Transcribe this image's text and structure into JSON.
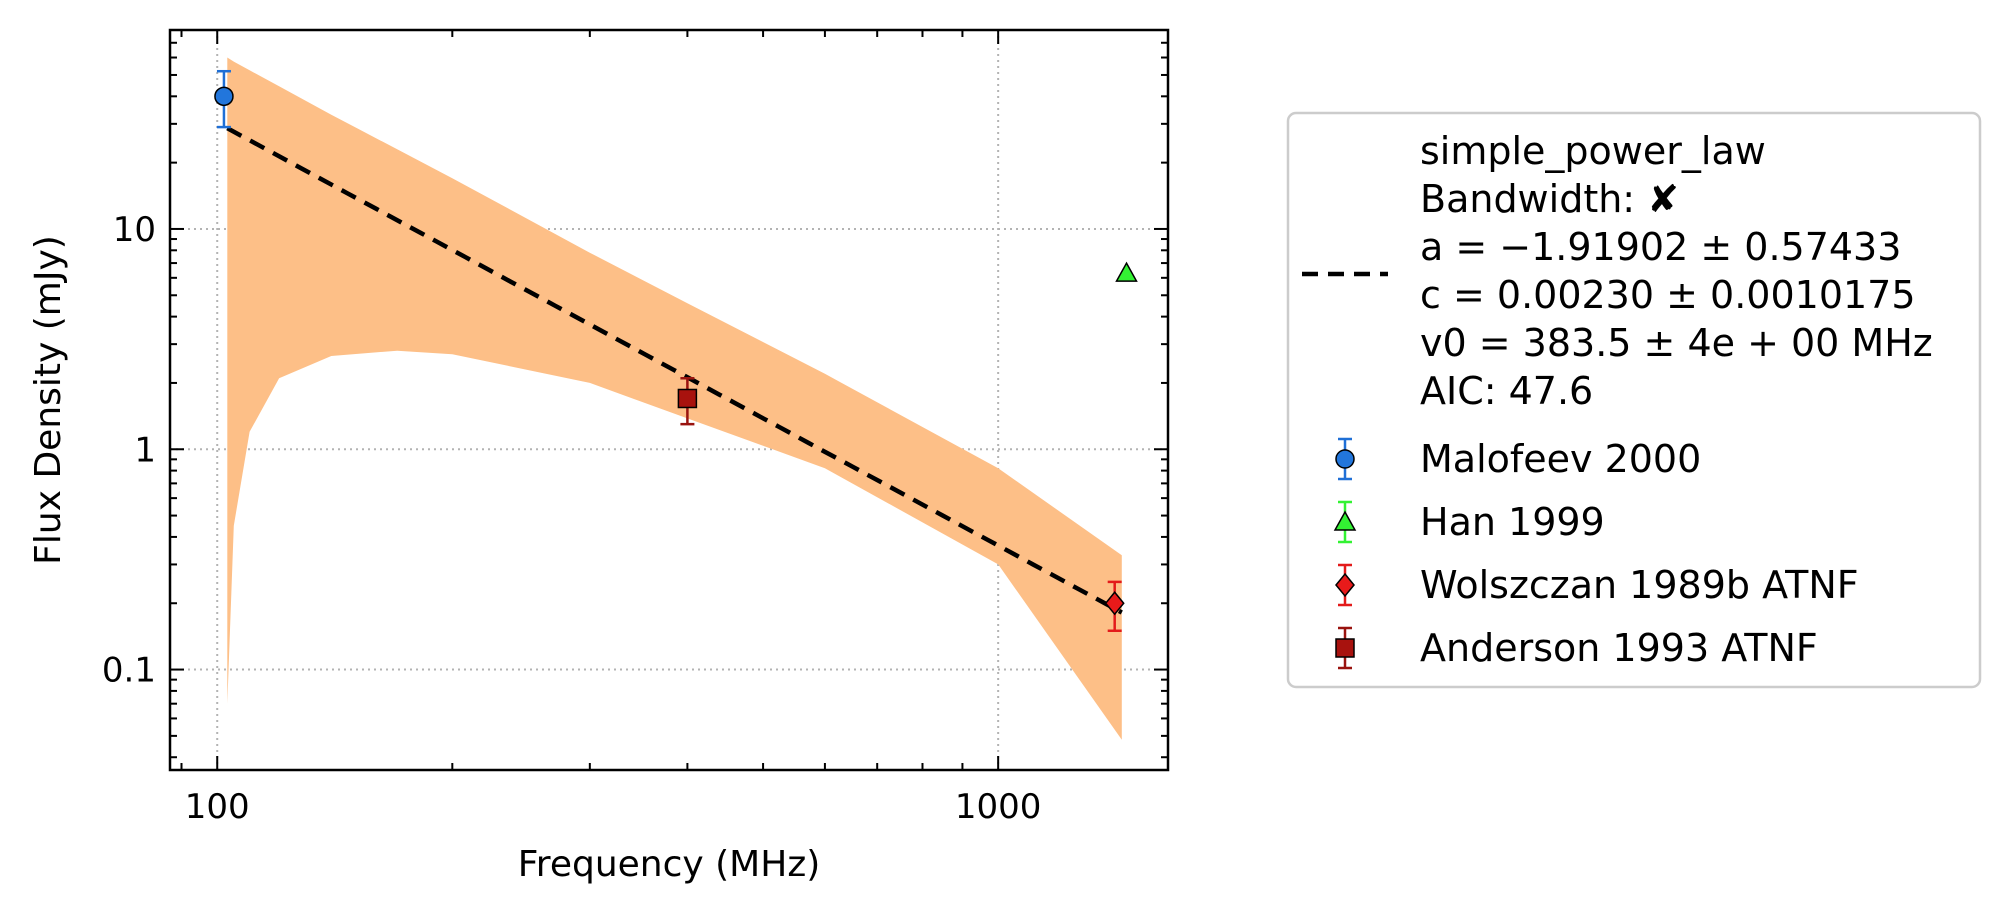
{
  "chart_data": {
    "type": "scatter",
    "xlabel": "Frequency (MHz)",
    "ylabel": "Flux Density (mJy)",
    "xscale": "log",
    "yscale": "log",
    "xlim": [
      87,
      1650
    ],
    "ylim": [
      0.035,
      80
    ],
    "x_ticks": [
      {
        "value": 100,
        "label": "100"
      },
      {
        "value": 1000,
        "label": "1000"
      }
    ],
    "y_ticks": [
      {
        "value": 0.1,
        "label": "0.1"
      },
      {
        "value": 1,
        "label": "1"
      },
      {
        "value": 10,
        "label": "10"
      }
    ],
    "grid": true,
    "legend_position": "outside-right",
    "fit": {
      "model": "simple_power_law",
      "info_lines": [
        "simple_power_law",
        "Bandwidth: ✘",
        "a = −1.91902 ± 0.57433",
        "c = 0.00230 ± 0.0010175",
        "v0 = 383.5 ± 4e + 00 MHz",
        "AIC: 47.6"
      ],
      "a": -1.91902,
      "c": 0.0023,
      "v0": 383.5,
      "x_range": [
        103,
        1440
      ],
      "color": "#000000",
      "uncertainty_band": {
        "color": "#fdbf87",
        "x": [
          103,
          105,
          110,
          120,
          140,
          170,
          200,
          300,
          400,
          600,
          1000,
          1440
        ],
        "upper": [
          60,
          57.5,
          52.5,
          44.4,
          33.0,
          23.0,
          17.0,
          7.8,
          4.6,
          2.2,
          0.82,
          0.33
        ],
        "lower": [
          0.07,
          0.45,
          1.2,
          2.1,
          2.65,
          2.8,
          2.7,
          2.0,
          1.38,
          0.82,
          0.3,
          0.048
        ]
      }
    },
    "series": [
      {
        "name": "Malofeev 2000",
        "marker": "circle",
        "color": "#2276dc",
        "err_color": "#1f6fd6",
        "points": [
          {
            "x": 102,
            "y": 40,
            "err_low": 11,
            "err_high": 12
          }
        ]
      },
      {
        "name": "Han 1999",
        "marker": "triangle",
        "color": "#33f233",
        "err_color": "#33f233",
        "points": [
          {
            "x": 1460,
            "y": 6.3
          }
        ]
      },
      {
        "name": "Wolszczan 1989b ATNF",
        "marker": "diamond",
        "color": "#e81a1a",
        "err_color": "#e31a1a",
        "points": [
          {
            "x": 1410,
            "y": 0.2,
            "err_low": 0.05,
            "err_high": 0.05
          }
        ]
      },
      {
        "name": "Anderson 1993 ATNF",
        "marker": "square",
        "color": "#a8120e",
        "err_color": "#99130f",
        "points": [
          {
            "x": 400,
            "y": 1.7,
            "err_low": 0.4,
            "err_high": 0.4
          }
        ]
      }
    ]
  }
}
